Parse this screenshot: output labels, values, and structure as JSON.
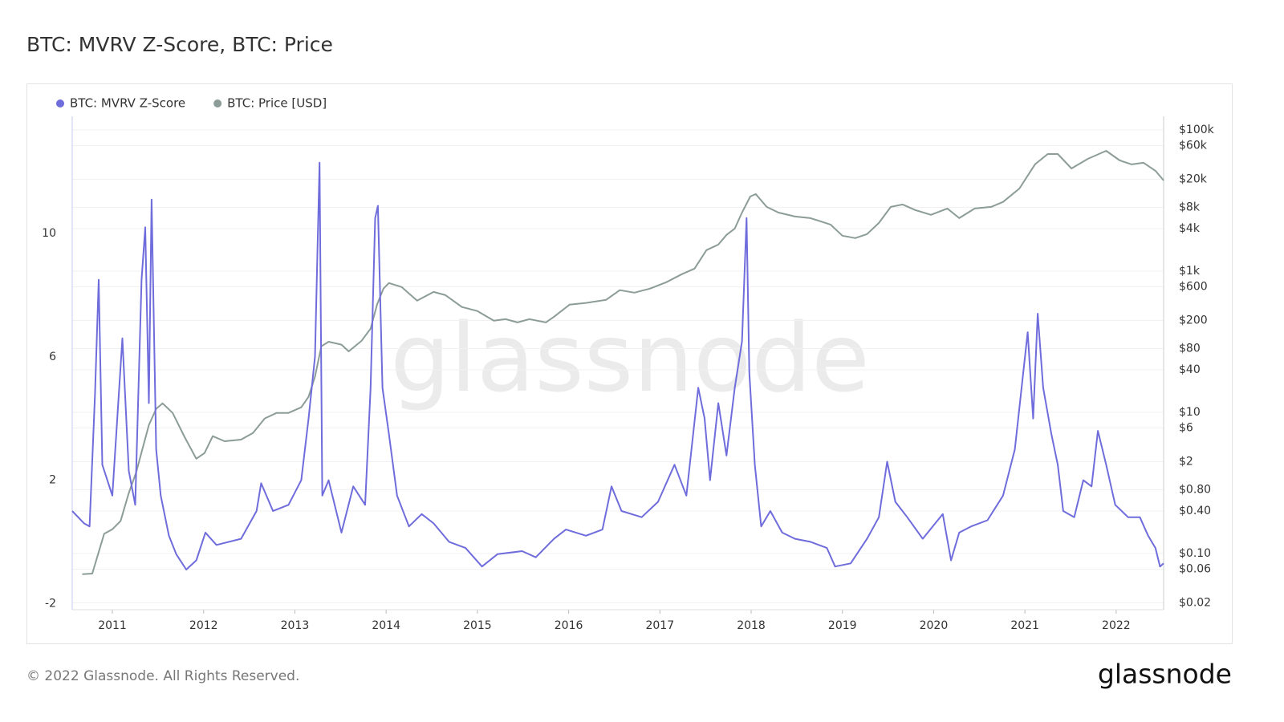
{
  "chart_data": {
    "type": "line",
    "title": "BTC: MVRV Z-Score, BTC: Price",
    "watermark": "glassnode",
    "xlim": [
      2010.56,
      2022.52
    ],
    "xticks": [
      2011,
      2012,
      2013,
      2014,
      2015,
      2016,
      2017,
      2018,
      2019,
      2020,
      2021,
      2022
    ],
    "ylim": [
      -2.2,
      13.8
    ],
    "yticks": [
      -2,
      2,
      6,
      10
    ],
    "y2lim": [
      0.016,
      156000
    ],
    "y2log": true,
    "y2ticks": [
      {
        "value": 100000,
        "label": "$100k"
      },
      {
        "value": 60000,
        "label": "$60k"
      },
      {
        "value": 20000,
        "label": "$20k"
      },
      {
        "value": 8000,
        "label": "$8k"
      },
      {
        "value": 4000,
        "label": "$4k"
      },
      {
        "value": 1000,
        "label": "$1k"
      },
      {
        "value": 600,
        "label": "$600"
      },
      {
        "value": 200,
        "label": "$200"
      },
      {
        "value": 80,
        "label": "$80"
      },
      {
        "value": 40,
        "label": "$40"
      },
      {
        "value": 10,
        "label": "$10"
      },
      {
        "value": 6,
        "label": "$6"
      },
      {
        "value": 2,
        "label": "$2"
      },
      {
        "value": 0.8,
        "label": "$0.80"
      },
      {
        "value": 0.4,
        "label": "$0.40"
      },
      {
        "value": 0.1,
        "label": "$0.10"
      },
      {
        "value": 0.06,
        "label": "$0.06"
      },
      {
        "value": 0.02,
        "label": "$0.02"
      }
    ],
    "grid": true,
    "legend": "top-left",
    "series": [
      {
        "name": "BTC: MVRV Z-Score",
        "color": "#6f6cdc",
        "axis": "y",
        "x": [
          2010.56,
          2010.69,
          2010.75,
          2010.81,
          2010.85,
          2010.89,
          2011.0,
          2011.11,
          2011.18,
          2011.25,
          2011.32,
          2011.36,
          2011.4,
          2011.43,
          2011.48,
          2011.53,
          2011.62,
          2011.7,
          2011.81,
          2011.92,
          2012.02,
          2012.14,
          2012.41,
          2012.58,
          2012.63,
          2012.76,
          2012.93,
          2013.07,
          2013.15,
          2013.22,
          2013.27,
          2013.3,
          2013.37,
          2013.51,
          2013.64,
          2013.77,
          2013.83,
          2013.88,
          2013.91,
          2013.96,
          2014.03,
          2014.12,
          2014.25,
          2014.39,
          2014.52,
          2014.69,
          2014.87,
          2015.05,
          2015.22,
          2015.49,
          2015.64,
          2015.84,
          2015.97,
          2016.19,
          2016.37,
          2016.47,
          2016.58,
          2016.8,
          2016.98,
          2017.16,
          2017.29,
          2017.42,
          2017.49,
          2017.55,
          2017.64,
          2017.73,
          2017.82,
          2017.9,
          2017.95,
          2017.98,
          2018.04,
          2018.11,
          2018.21,
          2018.34,
          2018.48,
          2018.65,
          2018.83,
          2018.92,
          2019.09,
          2019.27,
          2019.4,
          2019.49,
          2019.58,
          2019.71,
          2019.88,
          2020.1,
          2020.19,
          2020.28,
          2020.41,
          2020.59,
          2020.76,
          2020.89,
          2021.03,
          2021.09,
          2021.14,
          2021.2,
          2021.29,
          2021.36,
          2021.42,
          2021.54,
          2021.64,
          2021.73,
          2021.8,
          2021.89,
          2021.99,
          2022.13,
          2022.26,
          2022.35,
          2022.43,
          2022.48,
          2022.52
        ],
        "values": [
          1.0,
          0.6,
          0.5,
          4.8,
          8.5,
          2.5,
          1.5,
          6.6,
          2.3,
          1.2,
          8.5,
          10.2,
          4.5,
          11.1,
          3.0,
          1.5,
          0.2,
          -0.4,
          -0.9,
          -0.6,
          0.3,
          -0.1,
          0.1,
          1.0,
          1.9,
          1.0,
          1.2,
          2.0,
          4.0,
          6.0,
          12.3,
          1.5,
          2.0,
          0.3,
          1.8,
          1.2,
          5.0,
          10.5,
          10.9,
          5.0,
          3.5,
          1.5,
          0.5,
          0.9,
          0.6,
          0.0,
          -0.2,
          -0.8,
          -0.4,
          -0.3,
          -0.5,
          0.1,
          0.4,
          0.2,
          0.4,
          1.8,
          1.0,
          0.8,
          1.3,
          2.5,
          1.5,
          5.0,
          4.0,
          2.0,
          4.5,
          2.8,
          5.0,
          6.5,
          10.5,
          5.5,
          2.5,
          0.5,
          1.0,
          0.3,
          0.1,
          0.0,
          -0.2,
          -0.8,
          -0.7,
          0.1,
          0.8,
          2.6,
          1.3,
          0.8,
          0.1,
          0.9,
          -0.6,
          0.3,
          0.5,
          0.7,
          1.5,
          3.0,
          6.8,
          4.0,
          7.4,
          5.0,
          3.5,
          2.5,
          1.0,
          0.8,
          2.0,
          1.8,
          3.6,
          2.5,
          1.2,
          0.8,
          0.8,
          0.2,
          -0.2,
          -0.8,
          -0.7
        ]
      },
      {
        "name": "BTC: Price [USD]",
        "color": "#8c9c98",
        "axis": "y2",
        "x": [
          2010.67,
          2010.78,
          2010.82,
          2010.91,
          2011.0,
          2011.09,
          2011.18,
          2011.26,
          2011.4,
          2011.48,
          2011.55,
          2011.66,
          2011.79,
          2011.92,
          2012.01,
          2012.1,
          2012.23,
          2012.41,
          2012.54,
          2012.67,
          2012.8,
          2012.93,
          2013.07,
          2013.15,
          2013.22,
          2013.29,
          2013.37,
          2013.51,
          2013.59,
          2013.73,
          2013.83,
          2013.9,
          2013.97,
          2014.03,
          2014.17,
          2014.34,
          2014.52,
          2014.65,
          2014.83,
          2015.0,
          2015.18,
          2015.31,
          2015.44,
          2015.57,
          2015.75,
          2015.84,
          2016.01,
          2016.19,
          2016.41,
          2016.56,
          2016.72,
          2016.89,
          2017.07,
          2017.24,
          2017.38,
          2017.51,
          2017.64,
          2017.73,
          2017.82,
          2017.9,
          2017.99,
          2018.05,
          2018.17,
          2018.3,
          2018.48,
          2018.65,
          2018.87,
          2019.0,
          2019.14,
          2019.27,
          2019.4,
          2019.53,
          2019.66,
          2019.8,
          2019.97,
          2020.15,
          2020.28,
          2020.45,
          2020.63,
          2020.76,
          2020.94,
          2021.11,
          2021.25,
          2021.36,
          2021.51,
          2021.69,
          2021.89,
          2022.04,
          2022.17,
          2022.3,
          2022.43,
          2022.52
        ],
        "values": [
          0.051,
          0.052,
          0.078,
          0.19,
          0.22,
          0.29,
          0.72,
          1.4,
          6.6,
          11.2,
          13.4,
          9.8,
          4.5,
          2.2,
          2.65,
          4.6,
          3.9,
          4.1,
          5.1,
          8.2,
          9.8,
          9.8,
          11.8,
          16.6,
          32,
          86,
          100,
          91,
          73,
          103,
          153,
          335,
          565,
          678,
          596,
          382,
          508,
          457,
          310,
          272,
          199,
          209,
          188,
          209,
          188,
          226,
          335,
          355,
          392,
          537,
          496,
          565,
          697,
          904,
          1086,
          1982,
          2377,
          3258,
          4010,
          6760,
          11400,
          12360,
          8130,
          6760,
          5940,
          5640,
          4570,
          3180,
          2940,
          3345,
          4820,
          8130,
          8790,
          7330,
          6270,
          7710,
          5640,
          7710,
          8130,
          9550,
          14800,
          32500,
          45600,
          45600,
          28500,
          39000,
          50700,
          37000,
          32500,
          34300,
          26400,
          19300
        ]
      }
    ]
  },
  "copyright": "© 2022 Glassnode. All Rights Reserved.",
  "logo": "glassnode"
}
